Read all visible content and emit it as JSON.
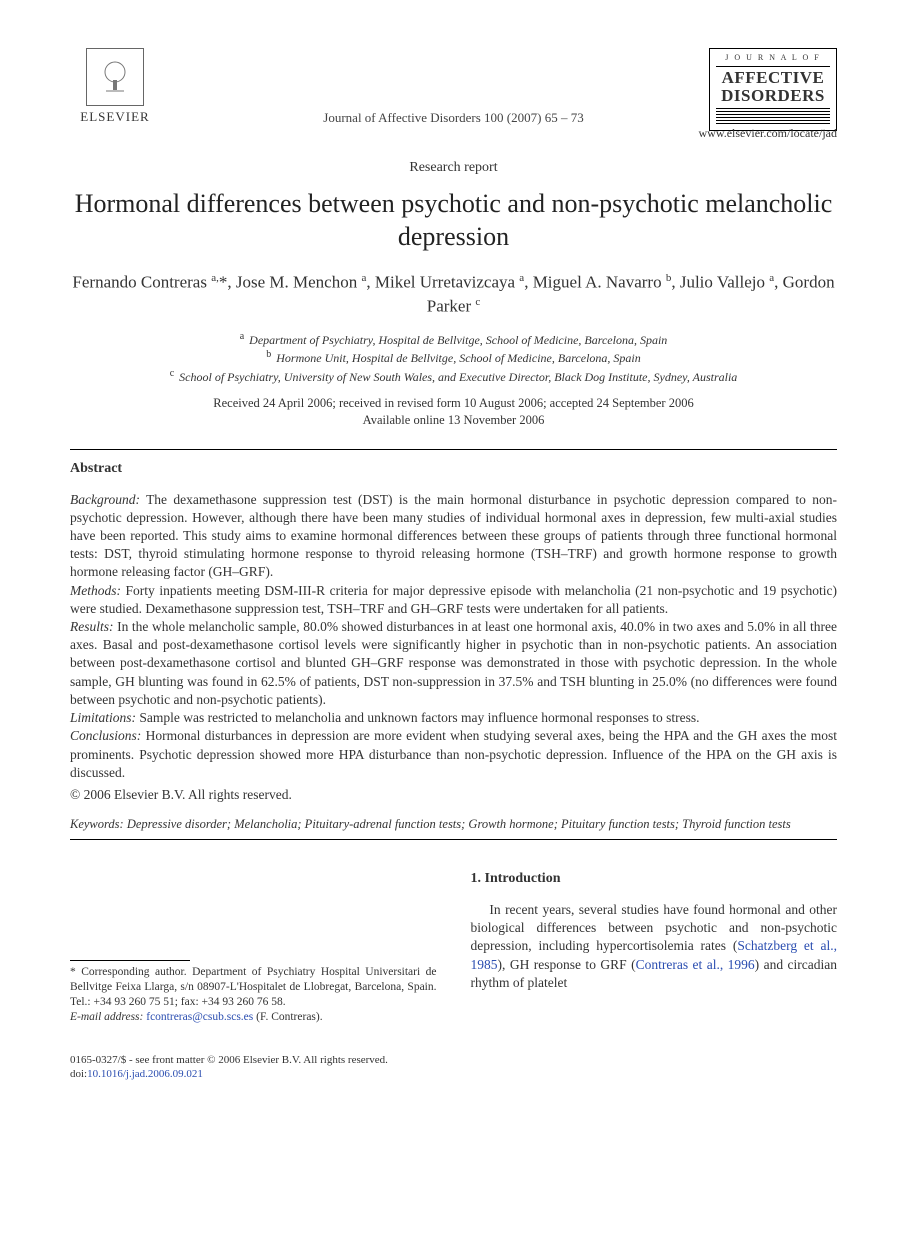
{
  "header": {
    "publisher_name": "ELSEVIER",
    "publisher_tree_alt": "tree",
    "citation": "Journal of Affective Disorders 100 (2007) 65 – 73",
    "journal_box_top": "J O U R N A L  O F",
    "journal_box_main1": "AFFECTIVE",
    "journal_box_main2": "DISORDERS",
    "journal_link": "www.elsevier.com/locate/jad"
  },
  "article": {
    "type": "Research report",
    "title": "Hormonal differences between psychotic and non-psychotic melancholic depression",
    "authors_html": "Fernando Contreras <sup>a,</sup>*, Jose M. Menchon <sup>a</sup>, Mikel Urretavizcaya <sup>a</sup>, Miguel A. Navarro <sup>b</sup>, Julio Vallejo <sup>a</sup>, Gordon Parker <sup>c</sup>",
    "affiliations": {
      "a": "Department of Psychiatry, Hospital de Bellvitge, School of Medicine, Barcelona, Spain",
      "b": "Hormone Unit, Hospital de Bellvitge, School of Medicine, Barcelona, Spain",
      "c": "School of Psychiatry, University of New South Wales, and Executive Director, Black Dog Institute, Sydney, Australia"
    },
    "dates_line1": "Received 24 April 2006; received in revised form 10 August 2006; accepted 24 September 2006",
    "dates_line2": "Available online 13 November 2006"
  },
  "abstract": {
    "heading": "Abstract",
    "background_label": "Background:",
    "background": " The dexamethasone suppression test (DST) is the main hormonal disturbance in psychotic depression compared to non-psychotic depression. However, although there have been many studies of individual hormonal axes in depression, few multi-axial studies have been reported. This study aims to examine hormonal differences between these groups of patients through three functional hormonal tests: DST, thyroid stimulating hormone response to thyroid releasing hormone (TSH–TRF) and growth hormone response to growth hormone releasing factor (GH–GRF).",
    "methods_label": "Methods:",
    "methods": " Forty inpatients meeting DSM-III-R criteria for major depressive episode with melancholia (21 non-psychotic and 19 psychotic) were studied. Dexamethasone suppression test, TSH–TRF and GH–GRF tests were undertaken for all patients.",
    "results_label": "Results:",
    "results": " In the whole melancholic sample, 80.0% showed disturbances in at least one hormonal axis, 40.0% in two axes and 5.0% in all three axes. Basal and post-dexamethasone cortisol levels were significantly higher in psychotic than in non-psychotic patients. An association between post-dexamethasone cortisol and blunted GH–GRF response was demonstrated in those with psychotic depression. In the whole sample, GH blunting was found in 62.5% of patients, DST non-suppression in 37.5% and TSH blunting in 25.0% (no differences were found between psychotic and non-psychotic patients).",
    "limitations_label": "Limitations:",
    "limitations": " Sample was restricted to melancholia and unknown factors may influence hormonal responses to stress.",
    "conclusions_label": "Conclusions:",
    "conclusions": " Hormonal disturbances in depression are more evident when studying several axes, being the HPA and the GH axes the most prominents. Psychotic depression showed more HPA disturbance than non-psychotic depression. Influence of the HPA on the GH axis is discussed.",
    "copyright": "© 2006 Elsevier B.V. All rights reserved."
  },
  "keywords": {
    "label": "Keywords:",
    "text": " Depressive disorder; Melancholia; Pituitary-adrenal function tests; Growth hormone; Pituitary function tests; Thyroid function tests"
  },
  "footnote": {
    "corr": "* Corresponding author. Department of Psychiatry Hospital Universitari de Bellvitge Feixa Llarga, s/n 08907-L'Hospitalet de Llobregat, Barcelona, Spain. Tel.: +34 93 260 75 51; fax: +34 93 260 76 58.",
    "email_label": "E-mail address:",
    "email": "fcontreras@csub.scs.es",
    "email_tail": " (F. Contreras)."
  },
  "intro": {
    "heading": "1. Introduction",
    "para": "In recent years, several studies have found hormonal and other biological differences between psychotic and non-psychotic depression, including hypercortisolemia rates (",
    "cite1": "Schatzberg et al., 1985",
    "mid1": "), GH response to GRF (",
    "cite2": "Contreras et al., 1996",
    "tail": ") and circadian rhythm of platelet"
  },
  "footer": {
    "line1": "0165-0327/$ - see front matter © 2006 Elsevier B.V. All rights reserved.",
    "doi_label": "doi:",
    "doi": "10.1016/j.jad.2006.09.021"
  },
  "colors": {
    "text": "#333333",
    "link": "#2a4db0",
    "rule": "#000000",
    "background": "#ffffff"
  }
}
